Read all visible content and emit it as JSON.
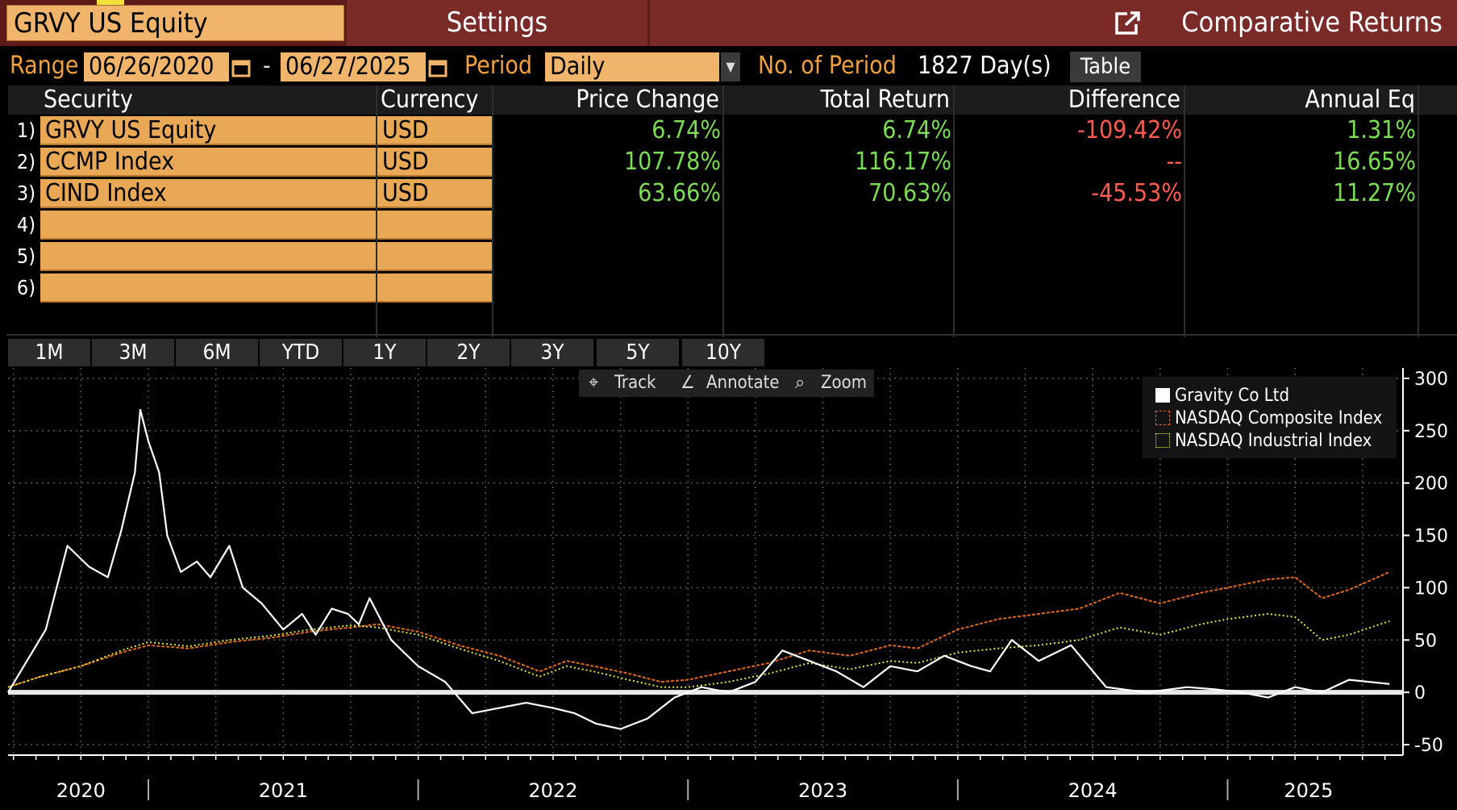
{
  "header": {
    "ticker": "GRVY US Equity",
    "settings_tab": "Settings",
    "title": "Comparative Returns"
  },
  "controls": {
    "range_label": "Range",
    "start_date": "06/26/2020",
    "separator": "-",
    "end_date": "06/27/2025",
    "period_label": "Period",
    "period_value": "Daily",
    "num_period_label": "No. of Period",
    "num_period_value": "1827 Day(s)",
    "table_button": "Table"
  },
  "table": {
    "columns": [
      "Security",
      "Currency",
      "Price Change",
      "Total Return",
      "Difference",
      "Annual Eq"
    ],
    "rows": [
      {
        "idx": "1)",
        "security": "GRVY US Equity",
        "currency": "USD",
        "price_change": "6.74%",
        "total_return": "6.74%",
        "difference": "-109.42%",
        "annual_eq": "1.31%"
      },
      {
        "idx": "2)",
        "security": "CCMP Index",
        "currency": "USD",
        "price_change": "107.78%",
        "total_return": "116.17%",
        "difference": "--",
        "annual_eq": "16.65%"
      },
      {
        "idx": "3)",
        "security": "CIND Index",
        "currency": "USD",
        "price_change": "63.66%",
        "total_return": "70.63%",
        "difference": "-45.53%",
        "annual_eq": "11.27%"
      },
      {
        "idx": "4)",
        "security": "",
        "currency": ""
      },
      {
        "idx": "5)",
        "security": "",
        "currency": ""
      },
      {
        "idx": "6)",
        "security": "",
        "currency": ""
      }
    ]
  },
  "period_buttons": [
    "1M",
    "3M",
    "6M",
    "YTD",
    "1Y",
    "2Y",
    "3Y",
    "5Y",
    "10Y"
  ],
  "chart_tools": [
    "Track",
    "Annotate",
    "Zoom"
  ],
  "colors": {
    "gravity": "#ffffff",
    "nasdaq_composite": "#e06a1a",
    "nasdaq_industrial": "#e6e63a",
    "positive": "#7ddc55",
    "negative": "#ff5b4e",
    "field": "#f0b56b"
  },
  "chart_data": {
    "type": "line",
    "title": "",
    "xlabel": "",
    "ylabel": "",
    "ylim": [
      -60,
      310
    ],
    "xlim": [
      2020.48,
      2025.65
    ],
    "y_ticks": [
      300,
      250,
      200,
      150,
      100,
      50,
      0,
      -50
    ],
    "x_tick_labels": [
      "2020",
      "2021",
      "2022",
      "2023",
      "2024",
      "2025"
    ],
    "legend_position": "top-right",
    "grid": true,
    "series": [
      {
        "name": "Gravity Co Ltd",
        "x": [
          2020.48,
          2020.55,
          2020.62,
          2020.7,
          2020.78,
          2020.85,
          2020.9,
          2020.95,
          2020.97,
          2021.0,
          2021.04,
          2021.07,
          2021.12,
          2021.18,
          2021.23,
          2021.3,
          2021.35,
          2021.42,
          2021.5,
          2021.57,
          2021.62,
          2021.68,
          2021.74,
          2021.78,
          2021.82,
          2021.9,
          2022.0,
          2022.1,
          2022.2,
          2022.3,
          2022.4,
          2022.5,
          2022.58,
          2022.66,
          2022.75,
          2022.85,
          2022.95,
          2023.05,
          2023.15,
          2023.25,
          2023.35,
          2023.45,
          2023.55,
          2023.65,
          2023.75,
          2023.85,
          2023.95,
          2024.05,
          2024.12,
          2024.2,
          2024.3,
          2024.42,
          2024.55,
          2024.7,
          2024.85,
          2024.95,
          2025.05,
          2025.15,
          2025.25,
          2025.35,
          2025.45,
          2025.6
        ],
        "values": [
          0,
          30,
          60,
          140,
          120,
          110,
          155,
          210,
          270,
          240,
          210,
          150,
          115,
          125,
          110,
          140,
          100,
          85,
          60,
          75,
          55,
          80,
          75,
          65,
          90,
          50,
          25,
          10,
          -20,
          -15,
          -10,
          -15,
          -20,
          -30,
          -35,
          -25,
          -5,
          5,
          0,
          10,
          40,
          30,
          20,
          5,
          25,
          20,
          35,
          25,
          20,
          50,
          30,
          45,
          5,
          0,
          5,
          3,
          0,
          -5,
          5,
          0,
          12,
          8
        ]
      },
      {
        "name": "NASDAQ Composite Index",
        "x": [
          2020.48,
          2020.6,
          2020.75,
          2020.9,
          2021.0,
          2021.15,
          2021.3,
          2021.45,
          2021.6,
          2021.75,
          2021.85,
          2022.0,
          2022.15,
          2022.3,
          2022.45,
          2022.55,
          2022.65,
          2022.78,
          2022.9,
          2023.0,
          2023.15,
          2023.3,
          2023.45,
          2023.6,
          2023.75,
          2023.85,
          2024.0,
          2024.15,
          2024.3,
          2024.45,
          2024.6,
          2024.75,
          2024.9,
          2025.0,
          2025.15,
          2025.25,
          2025.35,
          2025.45,
          2025.6
        ],
        "values": [
          5,
          15,
          25,
          38,
          45,
          42,
          48,
          52,
          58,
          62,
          65,
          58,
          45,
          35,
          20,
          30,
          25,
          18,
          10,
          12,
          20,
          28,
          40,
          35,
          45,
          42,
          60,
          70,
          75,
          80,
          95,
          85,
          95,
          100,
          108,
          110,
          90,
          98,
          115
        ]
      },
      {
        "name": "NASDAQ Industrial Index",
        "x": [
          2020.48,
          2020.6,
          2020.75,
          2020.9,
          2021.0,
          2021.15,
          2021.3,
          2021.45,
          2021.6,
          2021.75,
          2021.85,
          2022.0,
          2022.15,
          2022.3,
          2022.45,
          2022.55,
          2022.65,
          2022.78,
          2022.9,
          2023.0,
          2023.15,
          2023.3,
          2023.45,
          2023.6,
          2023.75,
          2023.85,
          2024.0,
          2024.15,
          2024.3,
          2024.45,
          2024.6,
          2024.75,
          2024.9,
          2025.0,
          2025.15,
          2025.25,
          2025.35,
          2025.45,
          2025.6
        ],
        "values": [
          5,
          15,
          25,
          40,
          48,
          44,
          50,
          54,
          60,
          64,
          62,
          55,
          42,
          30,
          15,
          25,
          20,
          12,
          5,
          5,
          10,
          18,
          28,
          22,
          30,
          28,
          38,
          42,
          45,
          50,
          62,
          55,
          65,
          70,
          75,
          72,
          50,
          55,
          68
        ]
      }
    ]
  }
}
